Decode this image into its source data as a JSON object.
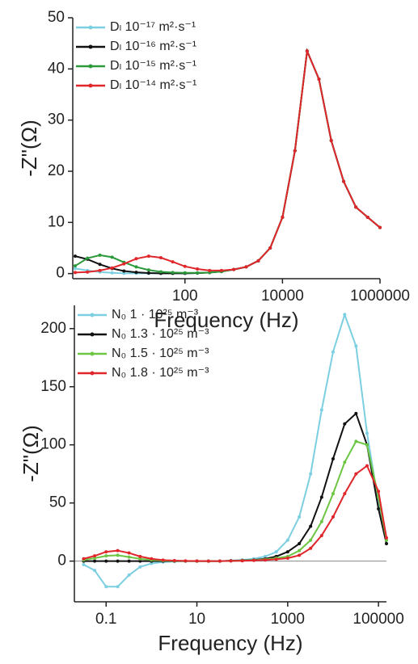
{
  "chart_data": [
    {
      "type": "line",
      "log_x": true,
      "x_label": "Frequency (Hz)",
      "y_label": "-Z\"(Ω)",
      "x": [
        0.56,
        1,
        1.8,
        3.2,
        5.6,
        10,
        18,
        32,
        56,
        100,
        180,
        320,
        560,
        1000,
        1800,
        3200,
        5600,
        10000,
        18000,
        32000,
        56000,
        100000,
        180000,
        320000,
        560000,
        1000000
      ],
      "xlim": [
        0.5,
        1000000
      ],
      "xticks": [
        100,
        10000,
        1000000
      ],
      "ylim": [
        -1,
        50
      ],
      "yticks": [
        0,
        10,
        20,
        30,
        40,
        50
      ],
      "legend": "top-left",
      "series": [
        {
          "name": "Dₗ 10⁻¹⁷ m²·s⁻¹",
          "color": "#7ccfe0",
          "values": [
            1,
            0.6,
            0.3,
            0.15,
            0.05,
            0.05,
            0.05,
            0.05,
            0.05,
            0.05,
            0.1,
            0.2,
            0.4,
            0.8,
            1.3,
            2.5,
            5,
            11,
            24,
            43.5,
            38,
            26,
            18,
            13,
            11,
            9
          ]
        },
        {
          "name": "Dₗ 10⁻¹⁶ m²·s⁻¹",
          "color": "#111111",
          "values": [
            3.4,
            2.8,
            1.8,
            1,
            0.5,
            0.25,
            0.1,
            0.05,
            0.05,
            0.05,
            0.1,
            0.2,
            0.4,
            0.8,
            1.3,
            2.5,
            5,
            11,
            24,
            43.5,
            38,
            26,
            18,
            13,
            11,
            9
          ]
        },
        {
          "name": "Dₗ 10⁻¹⁵ m²·s⁻¹",
          "color": "#2a9a3a",
          "values": [
            1.5,
            3,
            3.6,
            3.2,
            2.2,
            1.3,
            0.7,
            0.35,
            0.2,
            0.15,
            0.15,
            0.2,
            0.4,
            0.8,
            1.3,
            2.5,
            5,
            11,
            24,
            43.5,
            38,
            26,
            18,
            13,
            11,
            9
          ]
        },
        {
          "name": "Dₗ 10⁻¹⁴ m²·s⁻¹",
          "color": "#e0262b",
          "values": [
            0.2,
            0.3,
            0.6,
            1.1,
            1.9,
            2.9,
            3.4,
            3.1,
            2.3,
            1.4,
            0.9,
            0.6,
            0.6,
            0.8,
            1.3,
            2.5,
            5,
            11,
            24,
            43.5,
            38,
            26,
            18,
            13,
            11,
            9
          ]
        }
      ]
    },
    {
      "type": "line",
      "log_x": true,
      "x_label": "Frequency (Hz)",
      "y_label": "-Z\"(Ω)",
      "zero_line": true,
      "x": [
        0.032,
        0.056,
        0.1,
        0.18,
        0.32,
        0.56,
        1,
        1.8,
        3.2,
        5.6,
        10,
        18,
        32,
        56,
        100,
        180,
        320,
        560,
        1000,
        1800,
        3200,
        5600,
        10000,
        18000,
        32000,
        56000,
        100000,
        150000
      ],
      "xlim": [
        0.02,
        150000
      ],
      "xticks": [
        0.1,
        10,
        1000,
        100000
      ],
      "ylim": [
        -35,
        220
      ],
      "yticks": [
        0,
        50,
        100,
        150,
        200
      ],
      "legend": "top-left",
      "series": [
        {
          "name": "N₀ 1 · 10²⁵ m⁻³",
          "color": "#7ccfe0",
          "values": [
            -3,
            -8,
            -22,
            -22,
            -12,
            -5,
            -2,
            -0.8,
            -0.3,
            0,
            0,
            0,
            0,
            0.5,
            1,
            2,
            4,
            8,
            18,
            38,
            75,
            130,
            180,
            212,
            185,
            110,
            50,
            15
          ]
        },
        {
          "name": "N₀ 1.3 · 10²⁵ m⁻³",
          "color": "#111111",
          "values": [
            0,
            0,
            0,
            0,
            0,
            0,
            0,
            0,
            0,
            0,
            0,
            0,
            0,
            0.3,
            0.6,
            1,
            2,
            4,
            8,
            15,
            30,
            55,
            88,
            118,
            127,
            100,
            45,
            15
          ]
        },
        {
          "name": "N₀ 1.5 · 10²⁵ m⁻³",
          "color": "#6cc644",
          "values": [
            1,
            2.5,
            4.5,
            5,
            3.5,
            2,
            1,
            0.4,
            0.2,
            0.1,
            0,
            0,
            0,
            0.2,
            0.4,
            0.8,
            1.5,
            2.5,
            4,
            9,
            18,
            34,
            58,
            85,
            103,
            100,
            55,
            18
          ]
        },
        {
          "name": "N₀ 1.8 · 10²⁵ m⁻³",
          "color": "#e0262b",
          "values": [
            2,
            4.5,
            8,
            9,
            7,
            4,
            2,
            0.9,
            0.4,
            0.2,
            0.1,
            0,
            0,
            0.2,
            0.3,
            0.6,
            1,
            1.6,
            2.5,
            5,
            11,
            22,
            38,
            58,
            75,
            82,
            60,
            20
          ]
        }
      ]
    }
  ]
}
